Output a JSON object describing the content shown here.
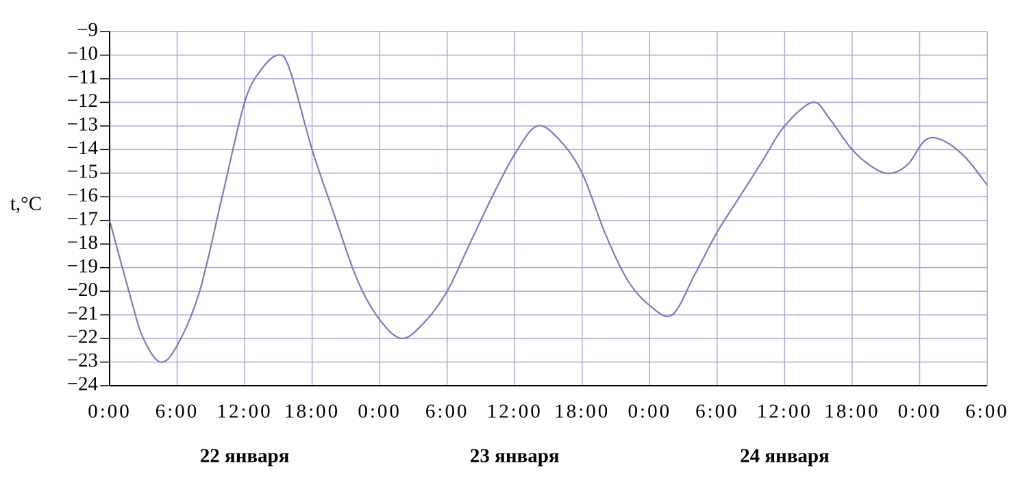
{
  "chart_data": {
    "type": "line",
    "y_label": "t,°C",
    "day_labels": [
      "22 января",
      "23 января",
      "24 января"
    ],
    "x": [
      0,
      2,
      3,
      4.5,
      6,
      8,
      10,
      12,
      13.5,
      15,
      16,
      18,
      20,
      22,
      24,
      26,
      28,
      30,
      32,
      34,
      36,
      38,
      40,
      42,
      44,
      46,
      48,
      50,
      52,
      54,
      56,
      58,
      60,
      62.5,
      64,
      66,
      68,
      69.5,
      71,
      72.5,
      74,
      76,
      78
    ],
    "values": [
      -17,
      -20.5,
      -22,
      -23,
      -22.3,
      -20,
      -16,
      -12,
      -10.6,
      -10,
      -10.6,
      -14,
      -16.8,
      -19.5,
      -21.2,
      -22,
      -21.3,
      -20,
      -18,
      -16,
      -14.2,
      -13,
      -13.6,
      -15,
      -17.5,
      -19.5,
      -20.6,
      -21,
      -19.3,
      -17.5,
      -16,
      -14.5,
      -13,
      -12,
      -12.7,
      -14,
      -14.8,
      -15,
      -14.6,
      -13.6,
      -13.6,
      -14.3,
      -15.5
    ],
    "color": "#7a7abf",
    "grid": true,
    "xlim": [
      0,
      78
    ],
    "xticks": [
      {
        "value": 0,
        "label": "0:00"
      },
      {
        "value": 6,
        "label": "6:00"
      },
      {
        "value": 12,
        "label": "12:00"
      },
      {
        "value": 18,
        "label": "18:00"
      },
      {
        "value": 24,
        "label": "0:00"
      },
      {
        "value": 30,
        "label": "6:00"
      },
      {
        "value": 36,
        "label": "12:00"
      },
      {
        "value": 42,
        "label": "18:00"
      },
      {
        "value": 48,
        "label": "0:00"
      },
      {
        "value": 54,
        "label": "6:00"
      },
      {
        "value": 60,
        "label": "12:00"
      },
      {
        "value": 66,
        "label": "18:00"
      },
      {
        "value": 72,
        "label": "0:00"
      },
      {
        "value": 78,
        "label": "6:00"
      }
    ],
    "ylim": [
      -24,
      -9
    ],
    "yticks": [
      {
        "value": -24,
        "label": "−24"
      },
      {
        "value": -23,
        "label": "−23"
      },
      {
        "value": -22,
        "label": "−22"
      },
      {
        "value": -21,
        "label": "−21"
      },
      {
        "value": -20,
        "label": "−20"
      },
      {
        "value": -19,
        "label": "−19"
      },
      {
        "value": -18,
        "label": "−18"
      },
      {
        "value": -17,
        "label": "−17"
      },
      {
        "value": -16,
        "label": "−16"
      },
      {
        "value": -15,
        "label": "−15"
      },
      {
        "value": -14,
        "label": "−14"
      },
      {
        "value": -13,
        "label": "−13"
      },
      {
        "value": -12,
        "label": "−12"
      },
      {
        "value": -11,
        "label": "−11"
      },
      {
        "value": -10,
        "label": "−10"
      },
      {
        "value": -9,
        "label": "−9"
      }
    ]
  }
}
